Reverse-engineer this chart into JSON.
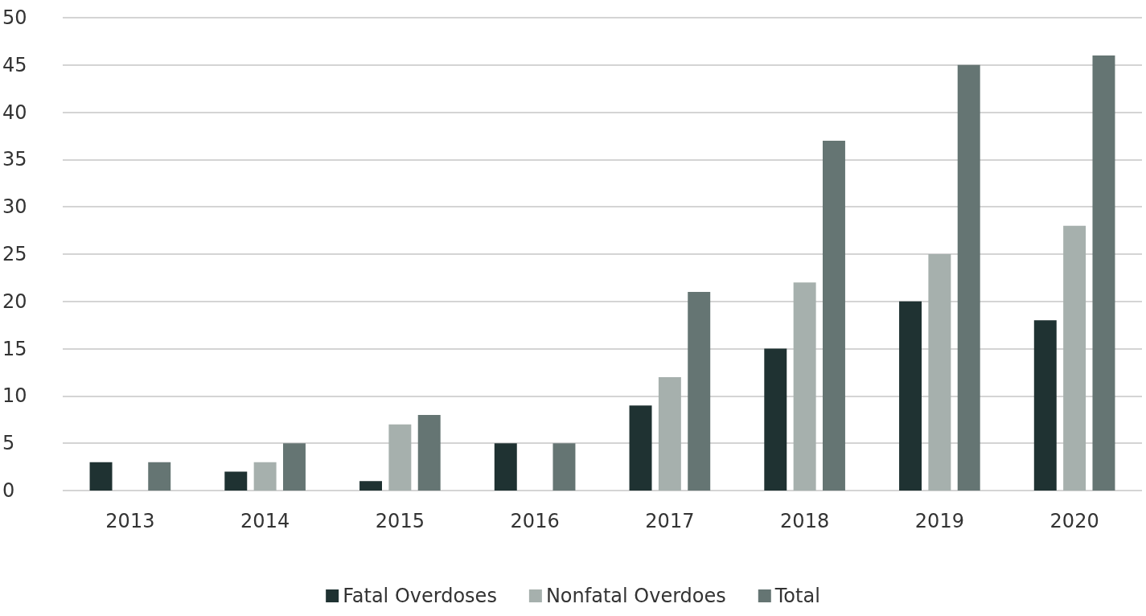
{
  "chart_data": {
    "type": "bar",
    "categories": [
      "2013",
      "2014",
      "2015",
      "2016",
      "2017",
      "2018",
      "2019",
      "2020"
    ],
    "series": [
      {
        "name": "Fatal Overdoses",
        "color": "#1f3232",
        "values": [
          3,
          2,
          1,
          5,
          9,
          15,
          20,
          18
        ]
      },
      {
        "name": "Nonfatal Overdoes",
        "color": "#a6b0ad",
        "values": [
          0,
          3,
          7,
          0,
          12,
          22,
          25,
          28
        ]
      },
      {
        "name": "Total",
        "color": "#657573",
        "values": [
          3,
          5,
          8,
          5,
          21,
          37,
          45,
          46
        ]
      }
    ],
    "ylim": [
      0,
      50
    ],
    "yticks": [
      0,
      5,
      10,
      15,
      20,
      25,
      30,
      35,
      40,
      45,
      50
    ],
    "grid": "y",
    "legend": "bottom"
  }
}
